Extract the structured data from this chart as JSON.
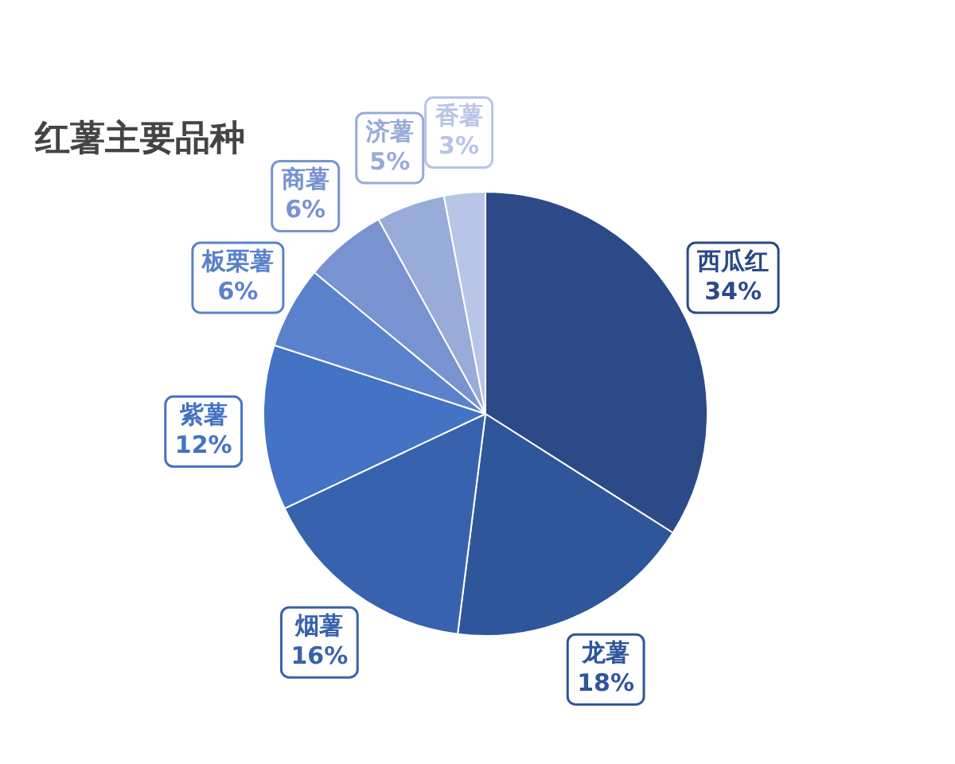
{
  "chart_data": {
    "type": "pie",
    "title": "红薯主要品种",
    "categories": [
      "西瓜红",
      "龙薯",
      "烟薯",
      "紫薯",
      "板栗薯",
      "商薯",
      "济薯",
      "香薯"
    ],
    "values": [
      34,
      18,
      16,
      12,
      6,
      6,
      5,
      3
    ],
    "value_labels": [
      "34%",
      "18%",
      "16%",
      "12%",
      "6%",
      "6%",
      "5%",
      "3%"
    ],
    "colors": [
      "#2c4a88",
      "#2f559b",
      "#3862ad",
      "#4472c4",
      "#5a82cc",
      "#7893cf",
      "#98abd9",
      "#b9c5e7"
    ],
    "legend": false
  }
}
